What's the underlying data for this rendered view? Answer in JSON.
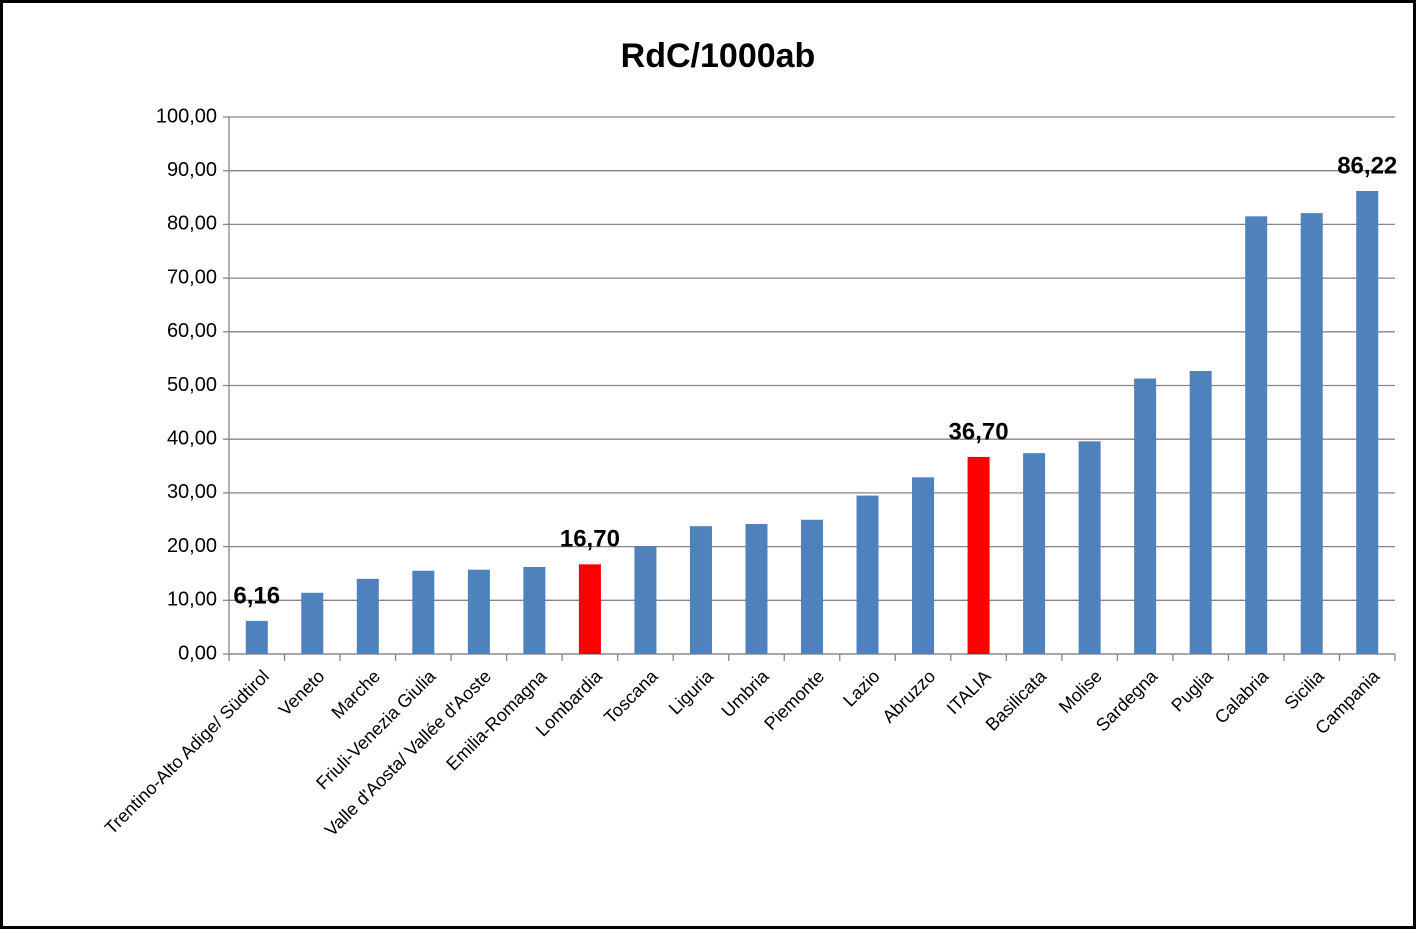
{
  "chart_data": {
    "type": "bar",
    "title": "RdC/1000ab",
    "categories": [
      "Trentino-Alto Adige/ Südtirol",
      "Veneto",
      "Marche",
      "Friuli-Venezia Giulia",
      "Valle d'Aosta/ Vallée d'Aoste",
      "Emilia-Romagna",
      "Lombardia",
      "Toscana",
      "Liguria",
      "Umbria",
      "Piemonte",
      "Lazio",
      "Abruzzo",
      "ITALIA",
      "Basilicata",
      "Molise",
      "Sardegna",
      "Puglia",
      "Calabria",
      "Sicilia",
      "Campania"
    ],
    "values": [
      6.16,
      11.4,
      14.0,
      15.5,
      15.7,
      16.2,
      16.7,
      20.1,
      23.8,
      24.2,
      25.0,
      29.5,
      32.9,
      36.7,
      37.4,
      39.6,
      51.3,
      52.7,
      81.5,
      82.1,
      86.22
    ],
    "value_labels": [
      "6,16",
      null,
      null,
      null,
      null,
      null,
      "16,70",
      null,
      null,
      null,
      null,
      null,
      null,
      "36,70",
      null,
      null,
      null,
      null,
      null,
      null,
      "86,22"
    ],
    "colors": [
      "#4f81bd",
      "#4f81bd",
      "#4f81bd",
      "#4f81bd",
      "#4f81bd",
      "#4f81bd",
      "#ff0000",
      "#4f81bd",
      "#4f81bd",
      "#4f81bd",
      "#4f81bd",
      "#4f81bd",
      "#4f81bd",
      "#ff0000",
      "#4f81bd",
      "#4f81bd",
      "#4f81bd",
      "#4f81bd",
      "#4f81bd",
      "#4f81bd",
      "#4f81bd"
    ],
    "ylim": [
      0,
      100
    ],
    "yticks": [
      {
        "value": 0,
        "label": "0,00"
      },
      {
        "value": 10,
        "label": "10,00"
      },
      {
        "value": 20,
        "label": "20,00"
      },
      {
        "value": 30,
        "label": "30,00"
      },
      {
        "value": 40,
        "label": "40,00"
      },
      {
        "value": 50,
        "label": "50,00"
      },
      {
        "value": 60,
        "label": "60,00"
      },
      {
        "value": 70,
        "label": "70,00"
      },
      {
        "value": 80,
        "label": "80,00"
      },
      {
        "value": 90,
        "label": "90,00"
      },
      {
        "value": 100,
        "label": "100,00"
      }
    ],
    "grid": true
  }
}
